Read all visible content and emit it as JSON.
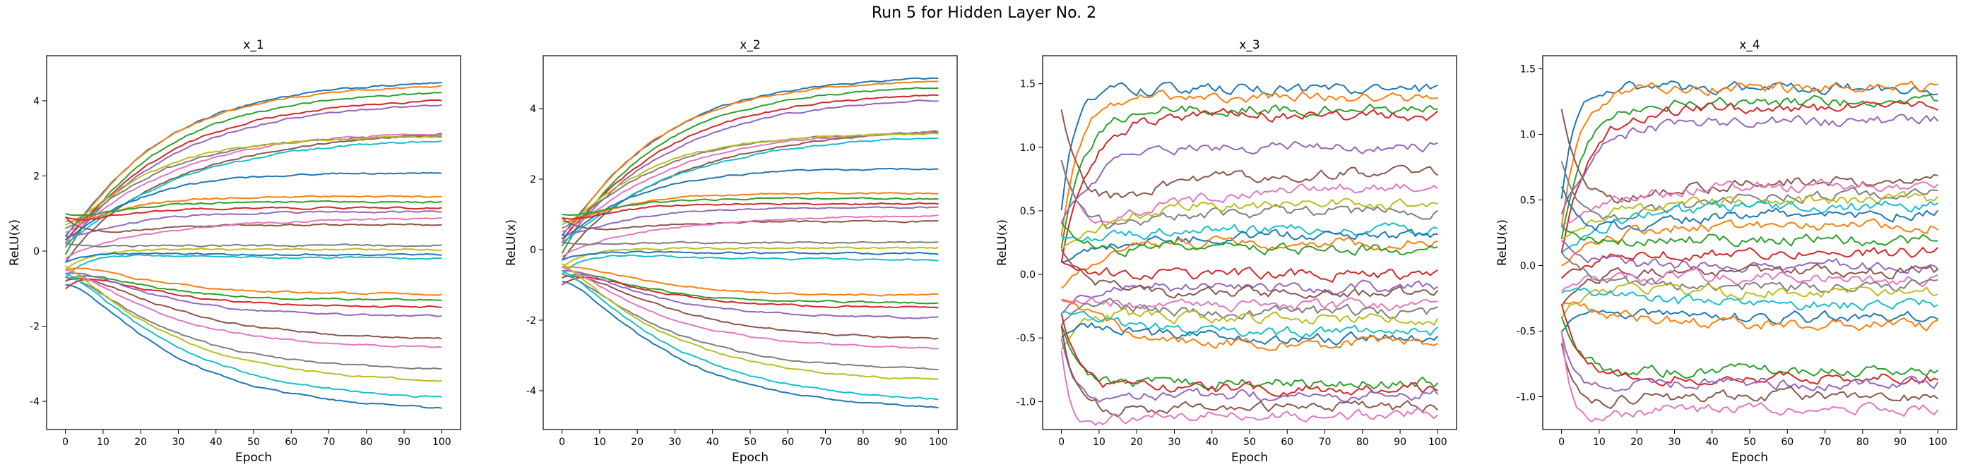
{
  "figure": {
    "title": "Run 5 for Hidden Layer No. 2"
  },
  "palette": [
    "#1f77b4",
    "#ff7f0e",
    "#2ca02c",
    "#d62728",
    "#9467bd",
    "#8c564b",
    "#e377c2",
    "#7f7f7f",
    "#bcbd22",
    "#17becf"
  ],
  "chart_data": [
    {
      "type": "line",
      "title": "x_1",
      "xlabel": "Epoch",
      "ylabel": "ReLU(x)",
      "xlim": [
        -5,
        105
      ],
      "ylim": [
        -4.75,
        5.2
      ],
      "xticks": [
        0,
        10,
        20,
        30,
        40,
        50,
        60,
        70,
        80,
        90,
        100
      ],
      "yticks": [
        -4,
        -2,
        0,
        2,
        4
      ],
      "x_range": [
        0,
        100
      ],
      "noise": 0.02,
      "series": [
        {
          "final": 4.55,
          "early": 0.4,
          "tau": 25
        },
        {
          "final": 4.45,
          "early": 0.2,
          "tau": 24
        },
        {
          "final": 4.3,
          "early": -0.1,
          "tau": 26
        },
        {
          "final": 4.1,
          "early": 0.3,
          "tau": 27
        },
        {
          "final": 4.0,
          "early": 0.1,
          "tau": 28
        },
        {
          "final": 3.25,
          "early": -0.3,
          "tau": 32
        },
        {
          "final": 3.2,
          "early": 0.5,
          "tau": 26
        },
        {
          "final": 3.1,
          "early": 0.6,
          "tau": 22
        },
        {
          "final": 3.05,
          "early": 0.7,
          "tau": 20
        },
        {
          "final": 3.05,
          "early": 0.2,
          "tau": 30
        },
        {
          "final": 2.1,
          "early": 0.3,
          "tau": 18
        },
        {
          "final": 1.45,
          "early": 0.8,
          "tau": 12
        },
        {
          "final": 1.3,
          "early": 1.0,
          "tau": 10
        },
        {
          "final": 1.15,
          "early": 0.9,
          "tau": 10
        },
        {
          "final": 1.05,
          "early": 0.4,
          "tau": 15
        },
        {
          "final": 0.7,
          "early": 0.9,
          "tau": 14
        },
        {
          "final": 0.9,
          "early": -0.2,
          "tau": 30
        },
        {
          "final": 0.15,
          "early": 0.2,
          "tau": 10
        },
        {
          "final": 0.05,
          "early": -0.5,
          "tau": 25
        },
        {
          "final": -0.2,
          "early": -0.7,
          "tau": 30
        },
        {
          "final": -0.1,
          "early": -0.3,
          "tau": 20
        },
        {
          "final": -1.15,
          "early": -0.5,
          "tau": 20
        },
        {
          "final": -1.3,
          "early": -0.8,
          "tau": 18
        },
        {
          "final": -1.5,
          "early": -1.0,
          "tau": 20
        },
        {
          "final": -1.75,
          "early": -0.6,
          "tau": 22
        },
        {
          "final": -2.4,
          "early": -0.8,
          "tau": 28
        },
        {
          "final": -2.6,
          "early": -0.5,
          "tau": 25
        },
        {
          "final": -3.2,
          "early": -0.7,
          "tau": 26
        },
        {
          "final": -3.55,
          "early": -0.4,
          "tau": 28
        },
        {
          "final": -4.05,
          "early": -0.6,
          "tau": 30
        },
        {
          "final": -4.3,
          "early": -0.9,
          "tau": 28
        }
      ]
    },
    {
      "type": "line",
      "title": "x_2",
      "xlabel": "Epoch",
      "ylabel": "ReLU(x)",
      "xlim": [
        -5,
        105
      ],
      "ylim": [
        -5.1,
        5.5
      ],
      "xticks": [
        0,
        10,
        20,
        30,
        40,
        50,
        60,
        70,
        80,
        90,
        100
      ],
      "yticks": [
        -4,
        -2,
        0,
        2,
        4
      ],
      "x_range": [
        0,
        100
      ],
      "noise": 0.02,
      "series": [
        {
          "final": 4.95,
          "early": 0.4,
          "tau": 25
        },
        {
          "final": 4.85,
          "early": 0.2,
          "tau": 24
        },
        {
          "final": 4.7,
          "early": -0.1,
          "tau": 26
        },
        {
          "final": 4.5,
          "early": 0.3,
          "tau": 27
        },
        {
          "final": 4.35,
          "early": 0.1,
          "tau": 28
        },
        {
          "final": 3.5,
          "early": -0.3,
          "tau": 32
        },
        {
          "final": 3.4,
          "early": 0.5,
          "tau": 26
        },
        {
          "final": 3.35,
          "early": 0.6,
          "tau": 22
        },
        {
          "final": 3.3,
          "early": 0.7,
          "tau": 20
        },
        {
          "final": 3.3,
          "early": 0.2,
          "tau": 30
        },
        {
          "final": 2.3,
          "early": 0.3,
          "tau": 18
        },
        {
          "final": 1.6,
          "early": 0.8,
          "tau": 12
        },
        {
          "final": 1.45,
          "early": 1.0,
          "tau": 10
        },
        {
          "final": 1.3,
          "early": 0.9,
          "tau": 10
        },
        {
          "final": 1.2,
          "early": 0.4,
          "tau": 15
        },
        {
          "final": 0.8,
          "early": 0.9,
          "tau": 14
        },
        {
          "final": 1.0,
          "early": -0.2,
          "tau": 30
        },
        {
          "final": 0.2,
          "early": 0.2,
          "tau": 10
        },
        {
          "final": 0.05,
          "early": -0.5,
          "tau": 25
        },
        {
          "final": -0.3,
          "early": -0.7,
          "tau": 30
        },
        {
          "final": -0.1,
          "early": -0.3,
          "tau": 20
        },
        {
          "final": -1.3,
          "early": -0.5,
          "tau": 20
        },
        {
          "final": -1.5,
          "early": -0.8,
          "tau": 18
        },
        {
          "final": -1.65,
          "early": -1.0,
          "tau": 20
        },
        {
          "final": -1.95,
          "early": -0.6,
          "tau": 22
        },
        {
          "final": -2.6,
          "early": -0.8,
          "tau": 28
        },
        {
          "final": -2.85,
          "early": -0.5,
          "tau": 25
        },
        {
          "final": -3.45,
          "early": -0.7,
          "tau": 26
        },
        {
          "final": -3.8,
          "early": -0.4,
          "tau": 28
        },
        {
          "final": -4.4,
          "early": -0.6,
          "tau": 30
        },
        {
          "final": -4.6,
          "early": -0.9,
          "tau": 28
        }
      ]
    },
    {
      "type": "line",
      "title": "x_3",
      "xlabel": "Epoch",
      "ylabel": "ReLU(x)",
      "xlim": [
        -5,
        105
      ],
      "ylim": [
        -1.22,
        1.72
      ],
      "xticks": [
        0,
        10,
        20,
        30,
        40,
        50,
        60,
        70,
        80,
        90,
        100
      ],
      "yticks": [
        -1.0,
        -0.5,
        0.0,
        0.5,
        1.0,
        1.5
      ],
      "x_range": [
        0,
        100
      ],
      "noise": 0.035,
      "series": [
        {
          "final": 1.45,
          "early": 0.5,
          "tau": 4
        },
        {
          "final": 1.4,
          "early": 0.3,
          "tau": 5
        },
        {
          "final": 1.3,
          "early": 0.2,
          "tau": 6
        },
        {
          "final": 1.25,
          "early": 0.1,
          "tau": 7
        },
        {
          "final": 1.0,
          "early": 0.4,
          "tau": 8
        },
        {
          "final": 0.8,
          "early": 1.3,
          "tau": 15
        },
        {
          "final": 0.7,
          "early": 0.9,
          "tau": 20
        },
        {
          "final": 0.5,
          "early": 0.9,
          "tau": 15
        },
        {
          "final": 0.55,
          "early": 0.2,
          "tau": 10
        },
        {
          "final": 0.35,
          "early": 0.3,
          "tau": 10
        },
        {
          "final": 0.3,
          "early": 0.1,
          "tau": 10
        },
        {
          "final": 0.25,
          "early": -0.1,
          "tau": 12
        },
        {
          "final": 0.2,
          "early": 0.4,
          "tau": 8
        },
        {
          "final": 0.0,
          "early": 0.1,
          "tau": 10
        },
        {
          "final": -0.1,
          "early": -0.3,
          "tau": 10
        },
        {
          "final": -0.15,
          "early": 0.2,
          "tau": 10
        },
        {
          "final": -0.25,
          "early": -0.2,
          "tau": 8
        },
        {
          "final": -0.3,
          "early": -0.4,
          "tau": 12
        },
        {
          "final": -0.35,
          "early": -0.6,
          "tau": 10
        },
        {
          "final": -0.45,
          "early": -0.3,
          "tau": 10
        },
        {
          "final": -0.5,
          "early": -0.5,
          "tau": 10
        },
        {
          "final": -0.55,
          "early": -0.2,
          "tau": 12
        },
        {
          "final": -0.85,
          "early": -0.4,
          "tau": 5
        },
        {
          "final": -0.9,
          "early": -0.3,
          "tau": 5
        },
        {
          "final": -0.95,
          "early": -0.5,
          "tau": 4
        },
        {
          "final": -1.05,
          "early": -0.4,
          "tau": 4
        },
        {
          "final": -1.1,
          "early": -0.6,
          "tau": 3
        }
      ]
    },
    {
      "type": "line",
      "title": "x_4",
      "xlabel": "Epoch",
      "ylabel": "ReLU(x)",
      "xlim": [
        -5,
        105
      ],
      "ylim": [
        -1.25,
        1.6
      ],
      "xticks": [
        0,
        10,
        20,
        30,
        40,
        50,
        60,
        70,
        80,
        90,
        100
      ],
      "yticks": [
        -1.0,
        -0.5,
        0.0,
        0.5,
        1.0,
        1.5
      ],
      "x_range": [
        0,
        100
      ],
      "noise": 0.035,
      "series": [
        {
          "final": 1.35,
          "early": 0.5,
          "tau": 4
        },
        {
          "final": 1.35,
          "early": 0.3,
          "tau": 5
        },
        {
          "final": 1.25,
          "early": 0.2,
          "tau": 6
        },
        {
          "final": 1.2,
          "early": 0.1,
          "tau": 7
        },
        {
          "final": 1.1,
          "early": 0.4,
          "tau": 8
        },
        {
          "final": 0.65,
          "early": 1.2,
          "tau": 15
        },
        {
          "final": 0.6,
          "early": 0.3,
          "tau": 10
        },
        {
          "final": 0.55,
          "early": 0.8,
          "tau": 20
        },
        {
          "final": 0.5,
          "early": 0.2,
          "tau": 10
        },
        {
          "final": 0.45,
          "early": 0.1,
          "tau": 12
        },
        {
          "final": 0.4,
          "early": 0.6,
          "tau": 15
        },
        {
          "final": 0.3,
          "early": 0.0,
          "tau": 10
        },
        {
          "final": 0.2,
          "early": 0.3,
          "tau": 10
        },
        {
          "final": 0.1,
          "early": -0.1,
          "tau": 10
        },
        {
          "final": 0.0,
          "early": 0.2,
          "tau": 8
        },
        {
          "final": -0.05,
          "early": -0.3,
          "tau": 10
        },
        {
          "final": -0.1,
          "early": -0.2,
          "tau": 12
        },
        {
          "final": -0.15,
          "early": 0.1,
          "tau": 10
        },
        {
          "final": -0.2,
          "early": -0.4,
          "tau": 10
        },
        {
          "final": -0.3,
          "early": -0.2,
          "tau": 12
        },
        {
          "final": -0.4,
          "early": -0.5,
          "tau": 10
        },
        {
          "final": -0.45,
          "early": -0.3,
          "tau": 10
        },
        {
          "final": -0.8,
          "early": -0.4,
          "tau": 5
        },
        {
          "final": -0.85,
          "early": -0.3,
          "tau": 5
        },
        {
          "final": -0.9,
          "early": -0.5,
          "tau": 4
        },
        {
          "final": -1.0,
          "early": -0.6,
          "tau": 4
        },
        {
          "final": -1.1,
          "early": -0.5,
          "tau": 3
        }
      ]
    }
  ]
}
